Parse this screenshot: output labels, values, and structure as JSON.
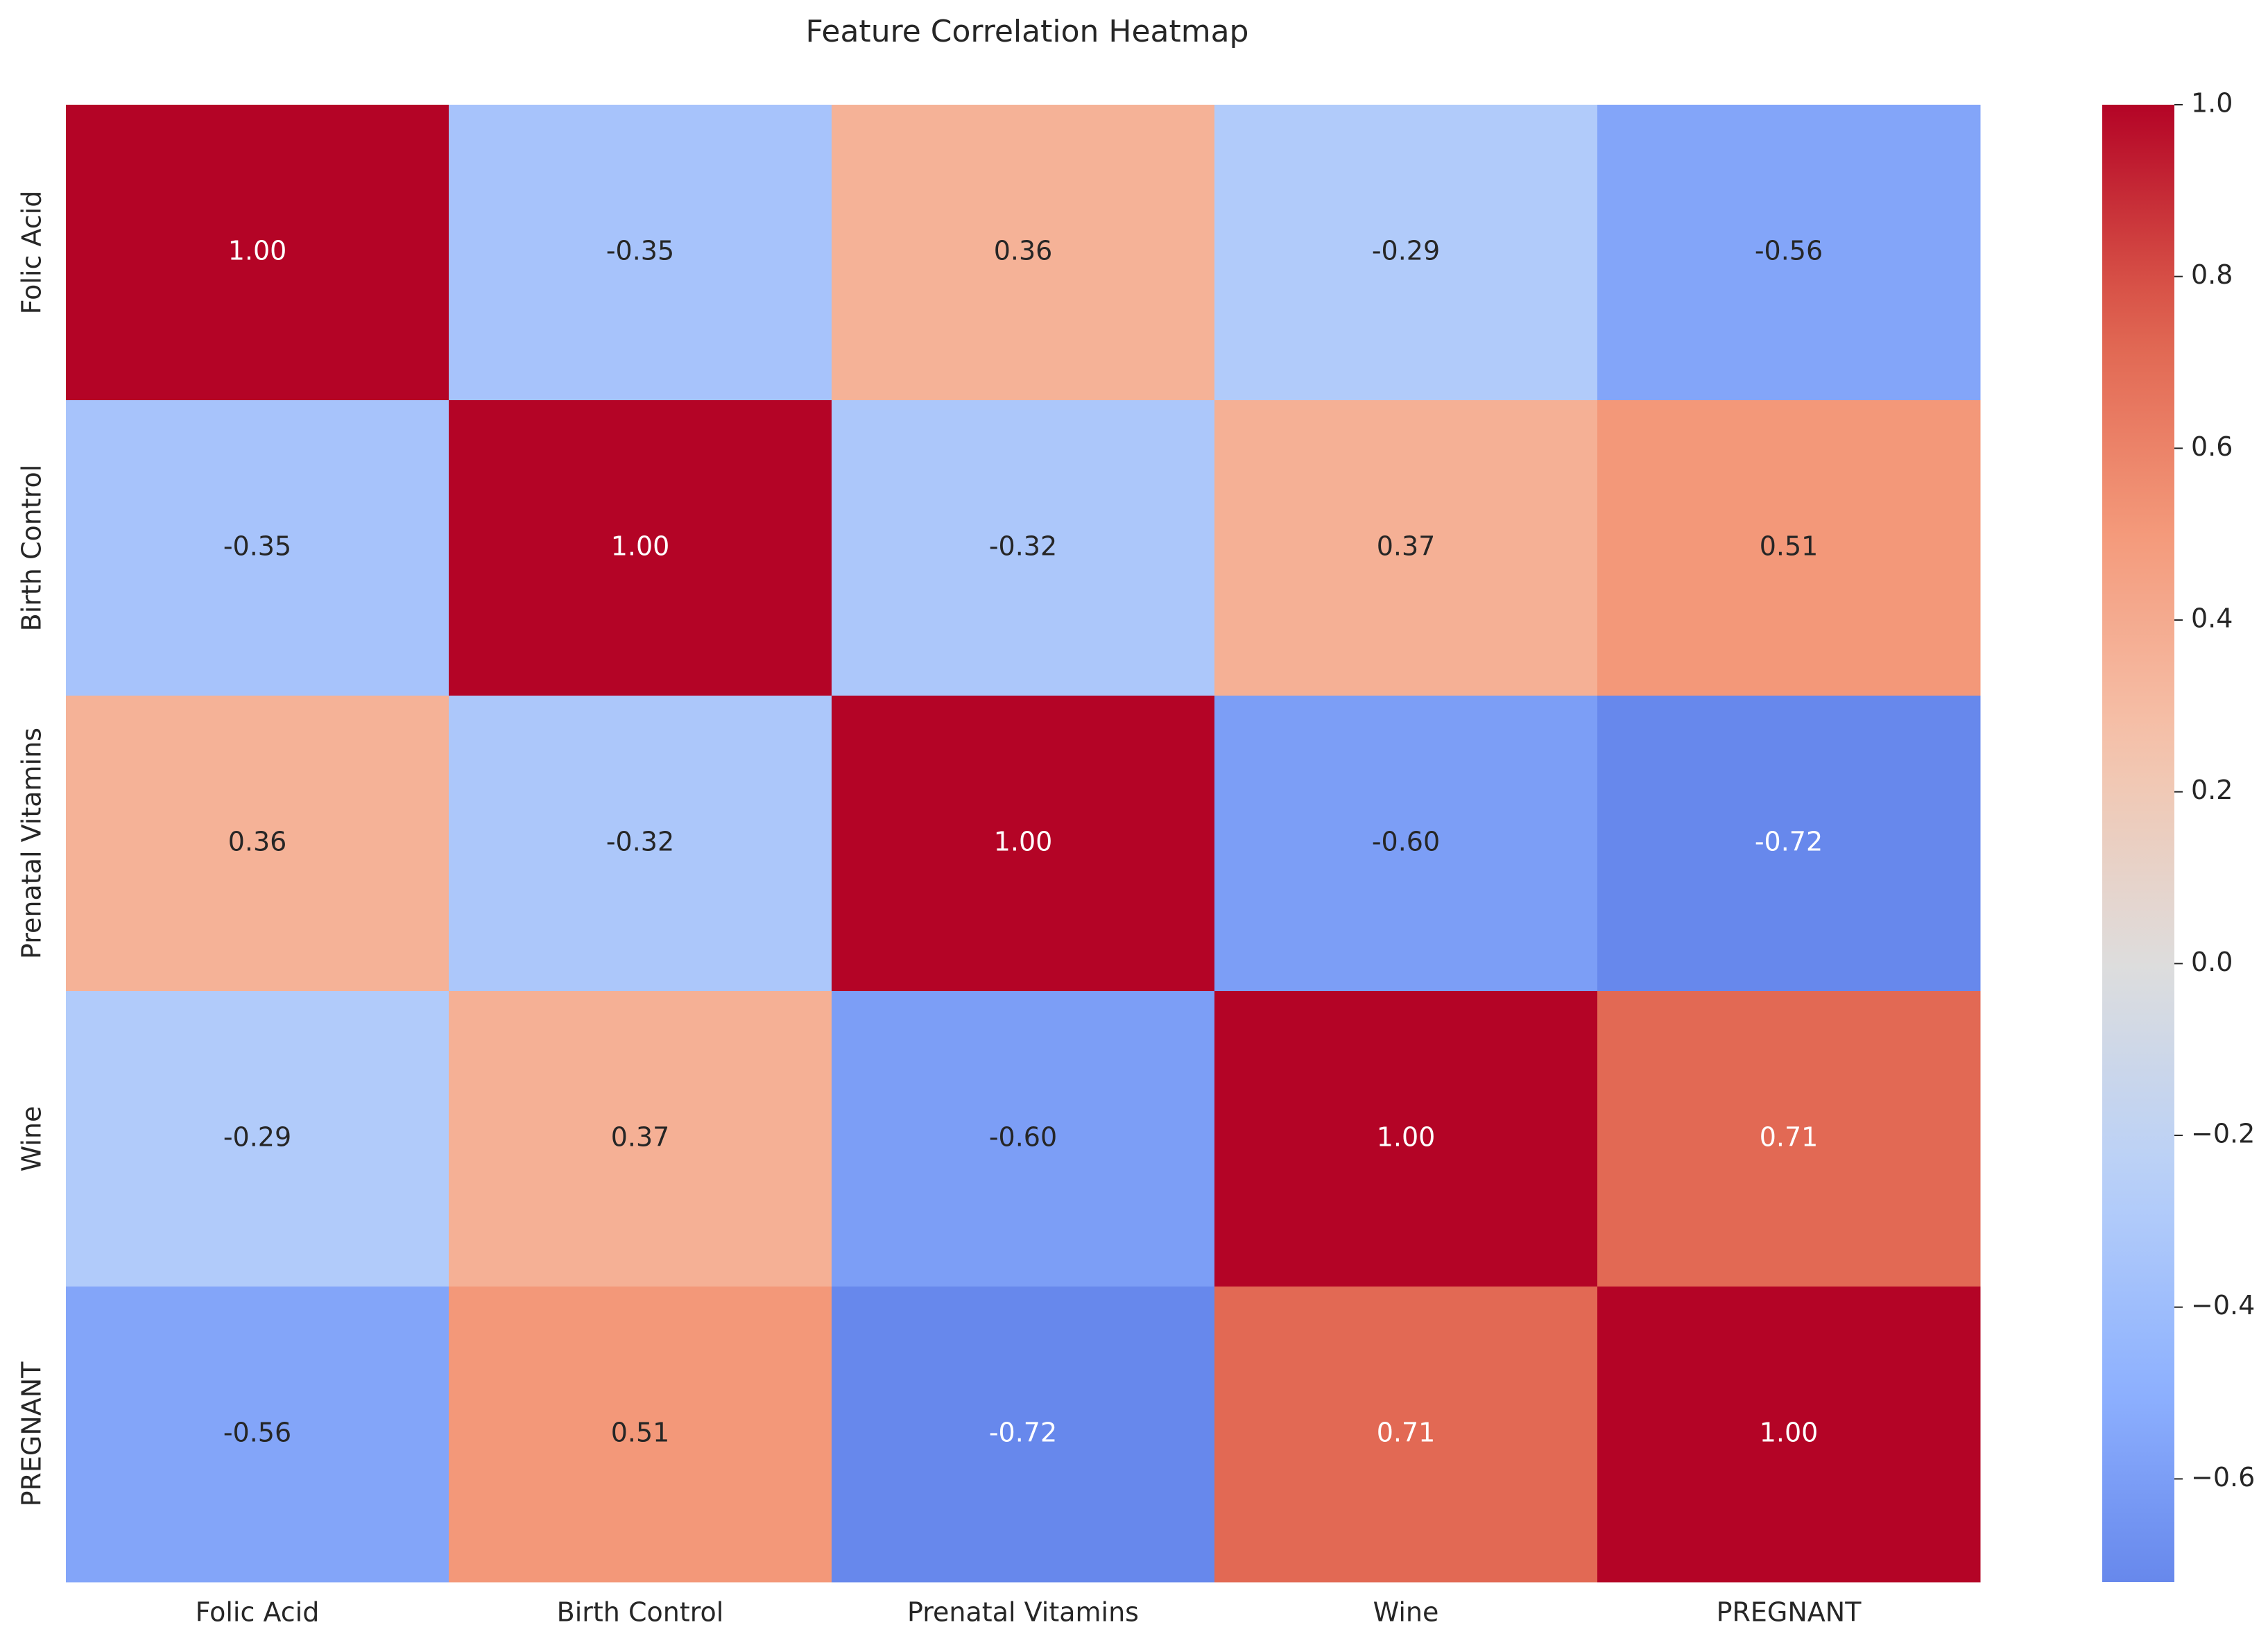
{
  "chart_data": {
    "type": "heatmap",
    "title": "Feature Correlation Heatmap",
    "xlabel": "",
    "ylabel": "",
    "x_categories": [
      "Folic Acid",
      "Birth Control",
      "Prenatal Vitamins",
      "Wine",
      "PREGNANT"
    ],
    "y_categories": [
      "Folic Acid",
      "Birth Control",
      "Prenatal Vitamins",
      "Wine",
      "PREGNANT"
    ],
    "values": [
      [
        1.0,
        -0.35,
        0.36,
        -0.29,
        -0.56
      ],
      [
        -0.35,
        1.0,
        -0.32,
        0.37,
        0.51
      ],
      [
        0.36,
        -0.32,
        1.0,
        -0.6,
        -0.72
      ],
      [
        -0.29,
        0.37,
        -0.6,
        1.0,
        0.71
      ],
      [
        -0.56,
        0.51,
        -0.72,
        0.71,
        1.0
      ]
    ],
    "value_format": "2 decimals",
    "colormap": "coolwarm",
    "color_range": [
      -0.72,
      1.0
    ],
    "colorbar": {
      "ticks": [
        1.0,
        0.8,
        0.6,
        0.4,
        0.2,
        0.0,
        -0.2,
        -0.4,
        -0.6
      ],
      "tick_labels": [
        "1.0",
        "0.8",
        "0.6",
        "0.4",
        "0.2",
        "0.0",
        "−0.2",
        "−0.4",
        "−0.6"
      ],
      "placement": "right"
    },
    "grid": false
  }
}
